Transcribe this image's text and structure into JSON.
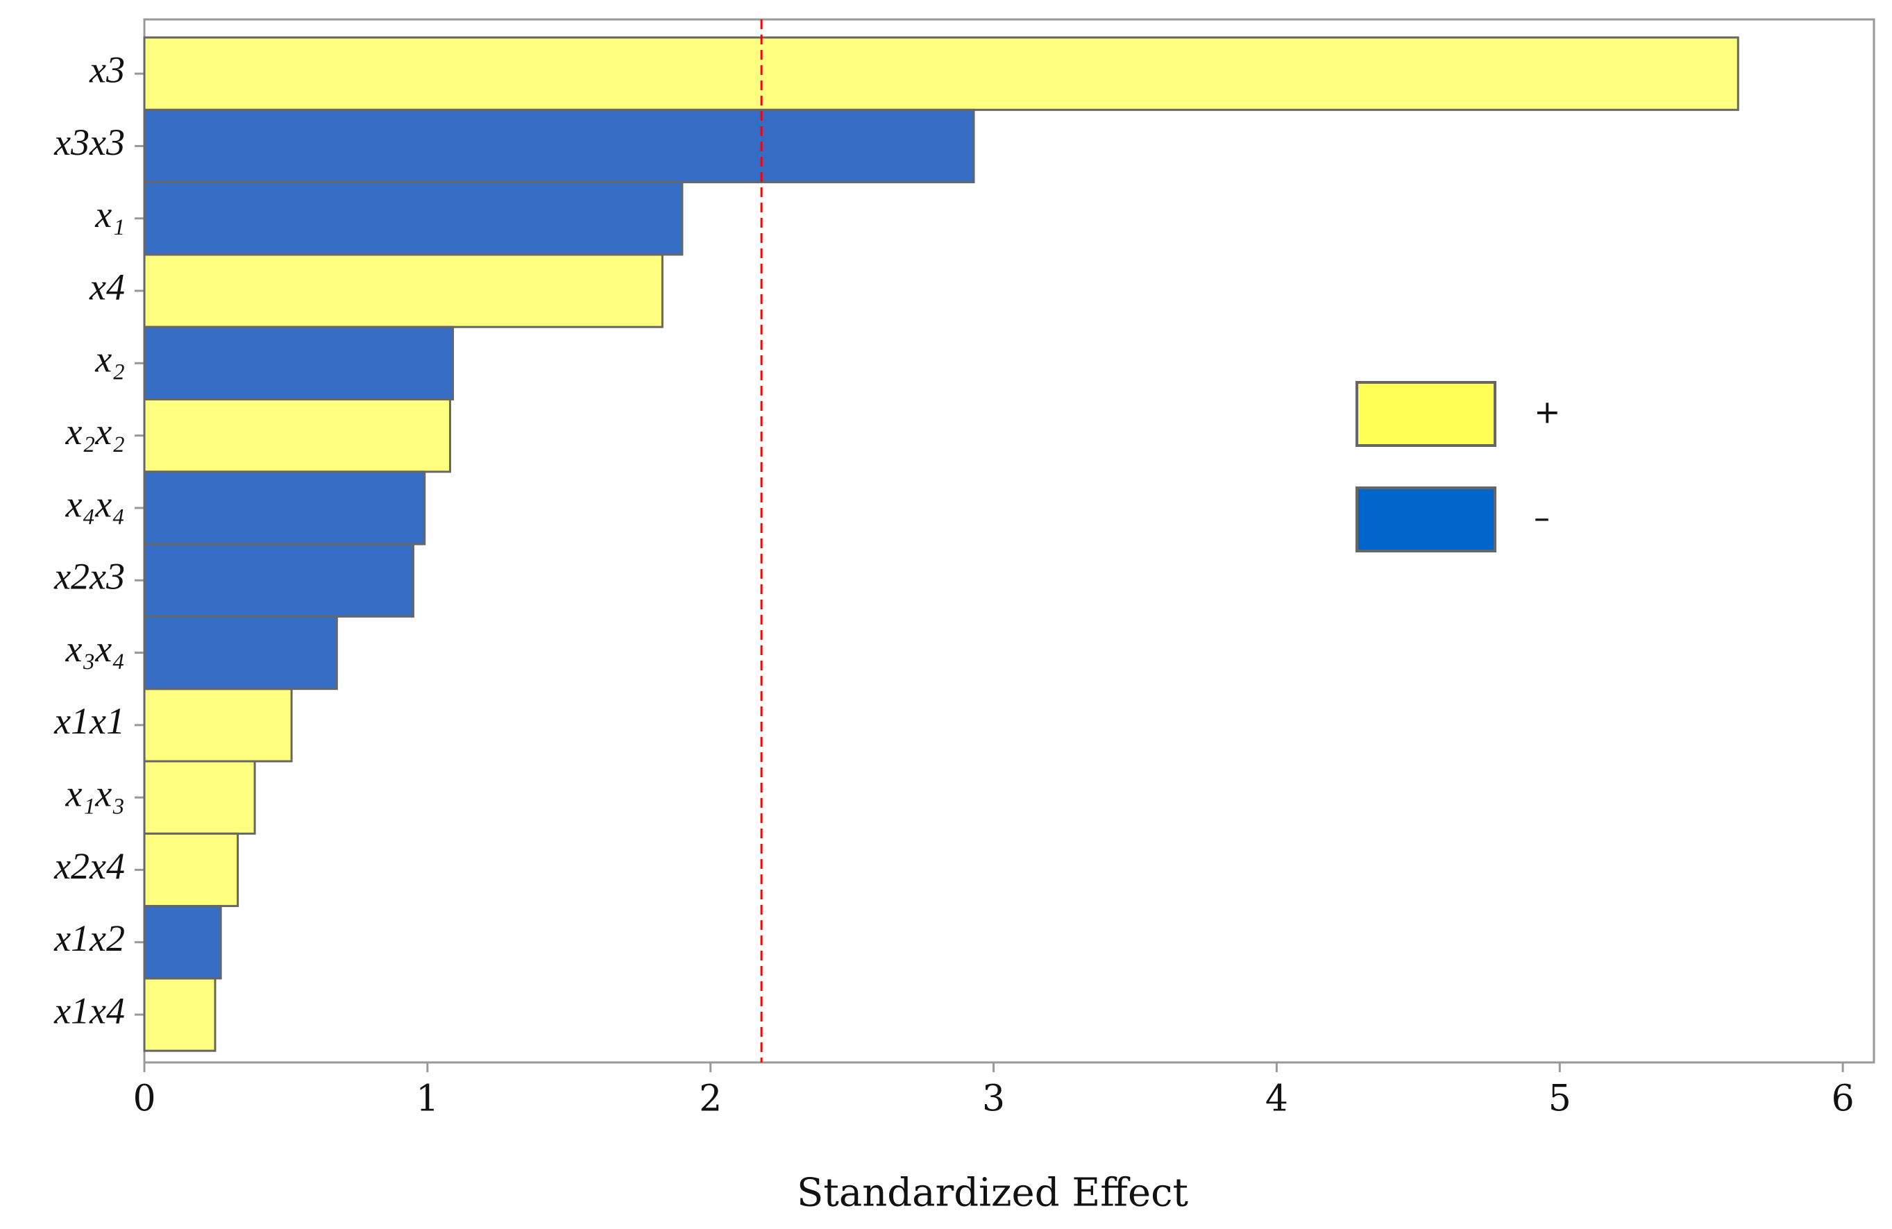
{
  "chart_data": {
    "type": "bar",
    "orientation": "horizontal",
    "x_label": "Standardized Effect",
    "categories": [
      "x3",
      "x3x3",
      "x₁",
      "x4",
      "x₂",
      "x₂x₂",
      "x₄x₄",
      "x2x3",
      "x₃x₄",
      "x1x1",
      "x₁x₃",
      "x2x4",
      "x1x2",
      "x1x4"
    ],
    "series": [
      {
        "name": "+",
        "color": "#ffff80",
        "values": [
          5.63,
          null,
          null,
          1.83,
          null,
          1.08,
          null,
          null,
          null,
          0.52,
          0.39,
          0.33,
          null,
          0.25
        ]
      },
      {
        "name": "–",
        "color": "#366dc4",
        "values": [
          null,
          2.93,
          1.9,
          null,
          1.09,
          null,
          0.99,
          0.95,
          0.68,
          null,
          null,
          null,
          0.27,
          null
        ]
      }
    ],
    "legend_colors": [
      "#ffff55",
      "#0066cc"
    ],
    "reference_line": 2.18,
    "reference_color": "#ff0000",
    "xlim": [
      0,
      6.11
    ],
    "xticks": [
      0,
      1,
      2,
      3,
      4,
      5,
      6
    ],
    "grid": false
  }
}
